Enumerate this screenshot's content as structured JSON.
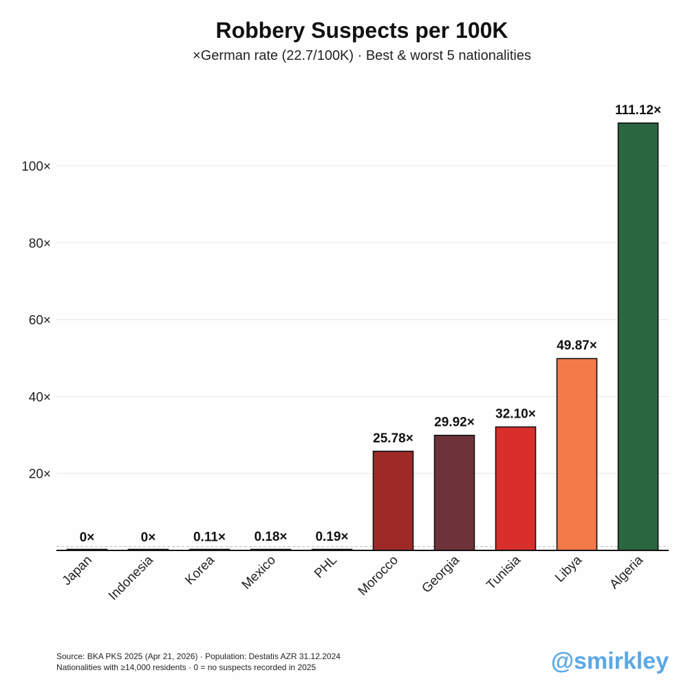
{
  "chart_data": {
    "type": "bar",
    "title": "Robbery Suspects per 100K",
    "subtitle": "×German rate (22.7/100K) · Best & worst 5 nationalities",
    "categories": [
      "Japan",
      "Indonesia",
      "Korea",
      "Mexico",
      "PHL",
      "Morocco",
      "Georgia",
      "Tunisia",
      "Libya",
      "Algeria"
    ],
    "values": [
      0,
      0,
      0.11,
      0.18,
      0.19,
      25.78,
      29.92,
      32.1,
      49.87,
      111.12
    ],
    "data_labels": [
      "0×",
      "0×",
      "0.11×",
      "0.18×",
      "0.19×",
      "25.78×",
      "29.92×",
      "32.10×",
      "49.87×",
      "111.12×"
    ],
    "colors": [
      "#222222",
      "#222222",
      "#222222",
      "#222222",
      "#222222",
      "#9e2a28",
      "#6e333a",
      "#d92f2c",
      "#f47a4a",
      "#2a6640"
    ],
    "yticks": [
      20,
      40,
      60,
      80,
      100
    ],
    "ytick_labels": [
      "20×",
      "40×",
      "60×",
      "80×",
      "100×"
    ],
    "reference_line": 1,
    "ylim": [
      0,
      115
    ],
    "grid": true
  },
  "footer": {
    "line1": "Source: BKA PKS 2025 (Apr 21, 2026) · Population: Destatis AZR 31.12.2024",
    "line2": "Nationalities with ≥14,000 residents · 0 = no suspects recorded in 2025"
  },
  "handle": "@smirkley"
}
